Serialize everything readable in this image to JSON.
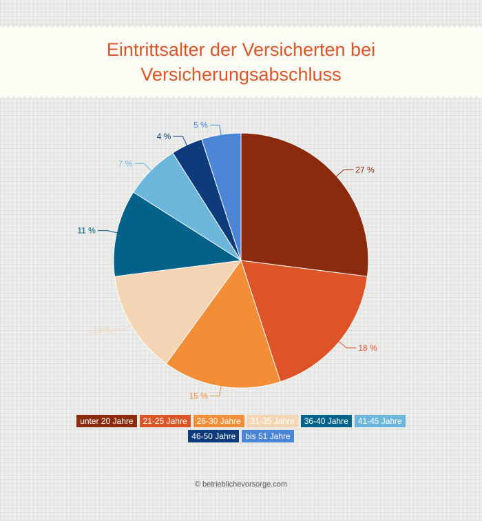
{
  "title_lines": [
    "Eintrittsalter der Versicherten bei",
    "Versicherungsabschluss"
  ],
  "footer": "© betrieblichevorsorge.com",
  "chart_data": {
    "type": "pie",
    "labels": [
      "unter 20 Jahre",
      "21-25 Jahre",
      "26-30 Jahre",
      "31-35 Jahre",
      "36-40 Jahre",
      "41-45 Jahre",
      "46-50 Jahre",
      "bis 51 Jahre"
    ],
    "values": [
      27,
      18,
      15,
      13,
      11,
      7,
      4,
      5
    ],
    "data_labels": [
      "27 %",
      "18 %",
      "15 %",
      "13 %",
      "11 %",
      "7 %",
      "4 %",
      "5 %"
    ],
    "colors": [
      "#8b2a0d",
      "#dc5428",
      "#f28d38",
      "#f3d5b5",
      "#03628a",
      "#6cb6dc",
      "#0d3b7c",
      "#4a85d8"
    ],
    "legend_position": "bottom"
  }
}
